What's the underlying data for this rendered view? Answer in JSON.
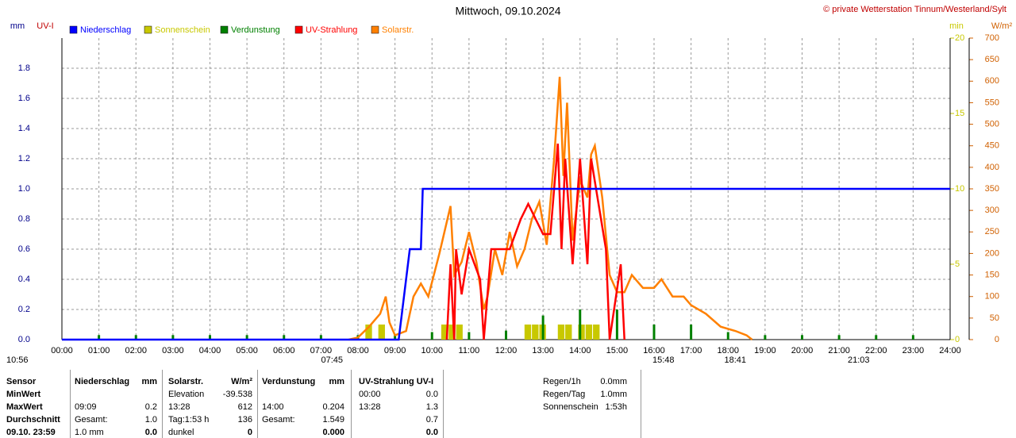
{
  "chart_data": {
    "type": "line",
    "title": "Mittwoch, 09.10.2024",
    "credit": "© private Wetterstation Tinnum/Westerland/Sylt",
    "y_labels": [
      "mm",
      "UV-I"
    ],
    "y2_label": "min",
    "y3_label": "W/m²",
    "xlim": [
      0,
      24
    ],
    "xticks": [
      {
        "value": 0,
        "label": "00:00"
      },
      {
        "value": 1,
        "label": "01:00"
      },
      {
        "value": 2,
        "label": "02:00"
      },
      {
        "value": 3,
        "label": "03:00"
      },
      {
        "value": 4,
        "label": "04:00"
      },
      {
        "value": 5,
        "label": "05:00"
      },
      {
        "value": 6,
        "label": "06:00"
      },
      {
        "value": 7,
        "label": "07:00"
      },
      {
        "value": 8,
        "label": "08:00"
      },
      {
        "value": 9,
        "label": "09:00"
      },
      {
        "value": 10,
        "label": "10:00"
      },
      {
        "value": 11,
        "label": "11:00"
      },
      {
        "value": 12,
        "label": "12:00"
      },
      {
        "value": 13,
        "label": "13:00"
      },
      {
        "value": 14,
        "label": "14:00"
      },
      {
        "value": 15,
        "label": "15:00"
      },
      {
        "value": 16,
        "label": "16:00"
      },
      {
        "value": 17,
        "label": "17:00"
      },
      {
        "value": 18,
        "label": "18:00"
      },
      {
        "value": 19,
        "label": "19:00"
      },
      {
        "value": 20,
        "label": "20:00"
      },
      {
        "value": 21,
        "label": "21:00"
      },
      {
        "value": 22,
        "label": "22:00"
      },
      {
        "value": 23,
        "label": "23:00"
      },
      {
        "value": 24,
        "label": "24:00"
      }
    ],
    "ylim": [
      0,
      2
    ],
    "yticks": [
      {
        "value": 0,
        "label": "0.0"
      },
      {
        "value": 0.2,
        "label": "0.2"
      },
      {
        "value": 0.4,
        "label": "0.4"
      },
      {
        "value": 0.6,
        "label": "0.6"
      },
      {
        "value": 0.8,
        "label": "0.8"
      },
      {
        "value": 1,
        "label": "1.0"
      },
      {
        "value": 1.2,
        "label": "1.2"
      },
      {
        "value": 1.4,
        "label": "1.4"
      },
      {
        "value": 1.6,
        "label": "1.6"
      },
      {
        "value": 1.8,
        "label": "1.8"
      }
    ],
    "y2lim": [
      0,
      20
    ],
    "y2ticks": [
      0,
      5,
      10,
      15,
      20
    ],
    "y3lim": [
      0,
      700
    ],
    "y3ticks": [
      0,
      50,
      100,
      150,
      200,
      250,
      300,
      350,
      400,
      450,
      500,
      550,
      600,
      650,
      700
    ],
    "grid": true,
    "series": [
      {
        "name": "Niederschlag",
        "color": "#0000ff",
        "kind": "line",
        "axis": "y",
        "x": [
          0,
          9.1,
          9.2,
          9.3,
          9.4,
          9.7,
          9.75,
          24
        ],
        "values": [
          0,
          0,
          0.2,
          0.4,
          0.6,
          0.6,
          1.0,
          1.0
        ]
      },
      {
        "name": "Sonnenschein",
        "color": "#c8c800",
        "kind": "bar",
        "axis": "y2",
        "x": [
          8.2,
          8.55,
          10.25,
          10.45,
          10.65,
          12.5,
          12.7,
          12.9,
          13.4,
          13.6,
          13.95,
          14.15,
          14.35
        ],
        "values": [
          1,
          1,
          1,
          1,
          1,
          1,
          1,
          1,
          1,
          1,
          1,
          1,
          1
        ]
      },
      {
        "name": "Verdunstung",
        "color": "#008000",
        "kind": "spike",
        "axis": "y",
        "x": [
          1,
          2,
          3,
          4,
          5,
          6,
          7,
          8,
          9,
          10,
          11,
          12,
          13,
          14,
          15,
          16,
          17,
          18,
          19,
          20,
          21,
          22,
          23
        ],
        "values": [
          0.03,
          0.03,
          0.03,
          0.03,
          0.03,
          0.03,
          0.03,
          0.03,
          0.03,
          0.05,
          0.05,
          0.06,
          0.16,
          0.2,
          0.2,
          0.1,
          0.1,
          0.05,
          0.03,
          0.03,
          0.03,
          0.03,
          0.03
        ]
      },
      {
        "name": "UV-Strahlung",
        "color": "#ff0000",
        "kind": "line",
        "axis": "y",
        "x": [
          10.4,
          10.5,
          10.6,
          10.65,
          10.8,
          11.0,
          11.3,
          11.4,
          11.6,
          11.9,
          12.1,
          12.4,
          12.6,
          12.8,
          13.0,
          13.2,
          13.4,
          13.5,
          13.6,
          13.8,
          14.0,
          14.2,
          14.3,
          14.5,
          14.7,
          14.8,
          15.1,
          15.2
        ],
        "values": [
          0,
          0.5,
          0,
          0.6,
          0.3,
          0.6,
          0.4,
          0,
          0.6,
          0.6,
          0.6,
          0.8,
          0.9,
          0.8,
          0.7,
          0.7,
          1.3,
          0.6,
          1.2,
          0.5,
          1.2,
          0.5,
          1.2,
          0.9,
          0.6,
          0,
          0.5,
          0
        ]
      },
      {
        "name": "Solarstr.",
        "color": "#ff8000",
        "kind": "line",
        "axis": "y3",
        "x": [
          7.75,
          8.0,
          8.3,
          8.6,
          8.75,
          8.85,
          9.0,
          9.3,
          9.5,
          9.7,
          9.9,
          10.2,
          10.5,
          10.6,
          10.8,
          11.0,
          11.2,
          11.4,
          11.5,
          11.7,
          11.9,
          12.1,
          12.3,
          12.5,
          12.7,
          12.9,
          13.1,
          13.3,
          13.45,
          13.55,
          13.65,
          13.8,
          14.0,
          14.2,
          14.3,
          14.4,
          14.6,
          14.8,
          15.0,
          15.2,
          15.4,
          15.7,
          16.0,
          16.2,
          16.5,
          16.8,
          17.0,
          17.4,
          17.8,
          18.2,
          18.5,
          18.65
        ],
        "values": [
          0,
          5,
          30,
          60,
          100,
          40,
          10,
          20,
          100,
          130,
          100,
          200,
          310,
          150,
          180,
          250,
          180,
          70,
          100,
          210,
          150,
          250,
          170,
          210,
          280,
          320,
          220,
          420,
          610,
          380,
          550,
          230,
          370,
          330,
          430,
          450,
          330,
          150,
          110,
          110,
          150,
          120,
          120,
          140,
          100,
          100,
          80,
          60,
          30,
          20,
          10,
          0
        ]
      }
    ],
    "annotations": [
      "10:56",
      "07:45",
      "15:48",
      "18:41",
      "21:03"
    ]
  },
  "stats_table": {
    "rows": [
      [
        "Sensor",
        "Niederschlag",
        "mm",
        "Solarstr.",
        "W/m²",
        "Verdunstung",
        "mm",
        "UV-Strahlung UV-I",
        null
      ],
      [
        "MinWert",
        null,
        null,
        "Elevation",
        "-39.538",
        null,
        null,
        "00:00",
        "0.0"
      ],
      [
        "MaxWert",
        "09:09",
        "0.2",
        "13:28",
        "612",
        "14:00",
        "0.204",
        "13:28",
        "1.3"
      ],
      [
        "Durchschnitt",
        "Gesamt:",
        "1.0",
        "Tag:1:53 h",
        "136",
        "Gesamt:",
        "1.549",
        null,
        "0.7"
      ],
      [
        "09.10. 23:59",
        "1.0 mm",
        "0.0",
        "dunkel",
        "0",
        null,
        "0.000",
        null,
        "0.0"
      ]
    ]
  },
  "summary": {
    "rows": [
      [
        "Regen/1h",
        "0.0mm"
      ],
      [
        "Regen/Tag",
        "1.0mm"
      ],
      [
        "Sonnenschein",
        "1:53h"
      ]
    ]
  }
}
